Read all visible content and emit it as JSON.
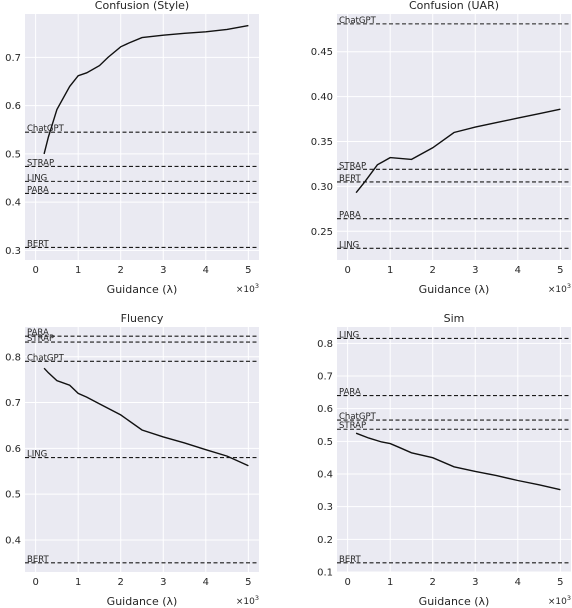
{
  "chart_data": [
    {
      "type": "line",
      "title": "Confusion (Style)",
      "xlabel": "Guidance (λ)",
      "x_multiplier": "×10",
      "x_multiplier_exp": "3",
      "xlim": [
        -0.25,
        5.25
      ],
      "ylim": [
        0.28,
        0.79
      ],
      "xticks": [
        0,
        1,
        2,
        3,
        4,
        5
      ],
      "xtick_labels": [
        "0",
        "1",
        "2",
        "3",
        "4",
        "5"
      ],
      "yticks": [
        0.3,
        0.4,
        0.5,
        0.6,
        0.7
      ],
      "ytick_labels": [
        "0.3",
        "0.4",
        "0.5",
        "0.6",
        "0.7"
      ],
      "series": [
        {
          "x": [
            0.2,
            0.3,
            0.5,
            0.8,
            1.0,
            1.2,
            1.5,
            1.7,
            2.0,
            2.2,
            2.5,
            3.0,
            3.5,
            4.0,
            4.5,
            5.0
          ],
          "y": [
            0.5,
            0.535,
            0.592,
            0.64,
            0.662,
            0.668,
            0.683,
            0.7,
            0.722,
            0.73,
            0.741,
            0.746,
            0.75,
            0.753,
            0.758,
            0.766
          ]
        }
      ],
      "baselines": [
        {
          "label": "ChatGPT",
          "y": 0.545
        },
        {
          "label": "STRAP",
          "y": 0.474
        },
        {
          "label": "LING",
          "y": 0.443
        },
        {
          "label": "PARA",
          "y": 0.418
        },
        {
          "label": "BERT",
          "y": 0.306
        }
      ],
      "grid": true
    },
    {
      "type": "line",
      "title": "Confusion (UAR)",
      "xlabel": "Guidance (λ)",
      "x_multiplier": "×10",
      "x_multiplier_exp": "3",
      "xlim": [
        -0.25,
        5.25
      ],
      "ylim": [
        0.218,
        0.492
      ],
      "xticks": [
        0,
        1,
        2,
        3,
        4,
        5
      ],
      "xtick_labels": [
        "0",
        "1",
        "2",
        "3",
        "4",
        "5"
      ],
      "yticks": [
        0.25,
        0.3,
        0.35,
        0.4,
        0.45
      ],
      "ytick_labels": [
        "0.25",
        "0.30",
        "0.35",
        "0.40",
        "0.45"
      ],
      "series": [
        {
          "x": [
            0.2,
            0.4,
            0.7,
            1.0,
            1.5,
            2.0,
            2.5,
            3.0,
            3.5,
            4.0,
            4.5,
            5.0
          ],
          "y": [
            0.293,
            0.305,
            0.324,
            0.332,
            0.33,
            0.343,
            0.36,
            0.366,
            0.371,
            0.376,
            0.381,
            0.386
          ]
        }
      ],
      "baselines": [
        {
          "label": "ChatGPT",
          "y": 0.481
        },
        {
          "label": "STRAP",
          "y": 0.319
        },
        {
          "label": "BERT",
          "y": 0.305
        },
        {
          "label": "PARA",
          "y": 0.264
        },
        {
          "label": "LING",
          "y": 0.231
        }
      ],
      "grid": true
    },
    {
      "type": "line",
      "title": "Fluency",
      "xlabel": "Guidance (λ)",
      "x_multiplier": "×10",
      "x_multiplier_exp": "3",
      "xlim": [
        -0.25,
        5.25
      ],
      "ylim": [
        0.33,
        0.865
      ],
      "xticks": [
        0,
        1,
        2,
        3,
        4,
        5
      ],
      "xtick_labels": [
        "0",
        "1",
        "2",
        "3",
        "4",
        "5"
      ],
      "yticks": [
        0.4,
        0.5,
        0.6,
        0.7,
        0.8
      ],
      "ytick_labels": [
        "0.4",
        "0.5",
        "0.6",
        "0.7",
        "0.8"
      ],
      "series": [
        {
          "x": [
            0.2,
            0.3,
            0.5,
            0.8,
            1.0,
            1.2,
            1.5,
            2.0,
            2.5,
            3.0,
            3.5,
            4.0,
            4.5,
            5.0
          ],
          "y": [
            0.775,
            0.765,
            0.748,
            0.738,
            0.72,
            0.712,
            0.697,
            0.673,
            0.64,
            0.625,
            0.612,
            0.597,
            0.583,
            0.562
          ]
        }
      ],
      "baselines": [
        {
          "label": "PARA",
          "y": 0.845
        },
        {
          "label": "STRAP",
          "y": 0.832
        },
        {
          "label": "ChatGPT",
          "y": 0.79
        },
        {
          "label": "LING",
          "y": 0.58
        },
        {
          "label": "BERT",
          "y": 0.35
        }
      ],
      "grid": true
    },
    {
      "type": "line",
      "title": "Sim",
      "xlabel": "Guidance (λ)",
      "x_multiplier": "×10",
      "x_multiplier_exp": "3",
      "xlim": [
        -0.25,
        5.25
      ],
      "ylim": [
        0.1,
        0.85
      ],
      "xticks": [
        0,
        1,
        2,
        3,
        4,
        5
      ],
      "xtick_labels": [
        "0",
        "1",
        "2",
        "3",
        "4",
        "5"
      ],
      "yticks": [
        0.1,
        0.2,
        0.3,
        0.4,
        0.5,
        0.6,
        0.7,
        0.8
      ],
      "ytick_labels": [
        "0.1",
        "0.2",
        "0.3",
        "0.4",
        "0.5",
        "0.6",
        "0.7",
        "0.8"
      ],
      "series": [
        {
          "x": [
            0.2,
            0.5,
            0.8,
            1.0,
            1.2,
            1.5,
            2.0,
            2.5,
            3.0,
            3.5,
            4.0,
            4.5,
            5.0
          ],
          "y": [
            0.525,
            0.51,
            0.498,
            0.493,
            0.482,
            0.465,
            0.45,
            0.422,
            0.408,
            0.395,
            0.38,
            0.367,
            0.352
          ]
        }
      ],
      "baselines": [
        {
          "label": "LING",
          "y": 0.815
        },
        {
          "label": "PARA",
          "y": 0.64
        },
        {
          "label": "ChatGPT",
          "y": 0.565
        },
        {
          "label": "STRAP",
          "y": 0.537
        },
        {
          "label": "BERT",
          "y": 0.128
        }
      ],
      "grid": true
    }
  ]
}
